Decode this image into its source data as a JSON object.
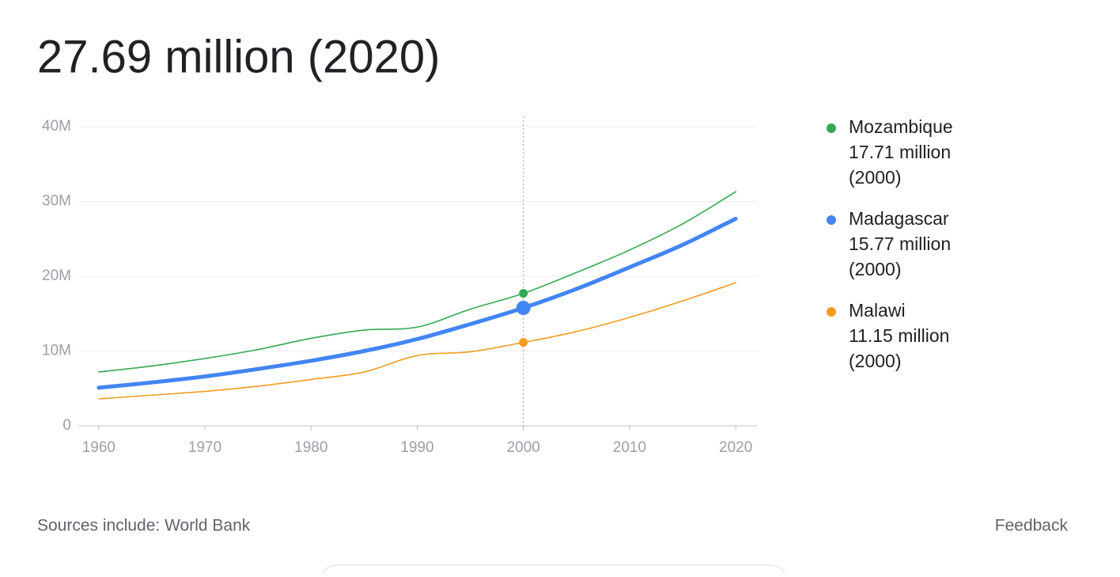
{
  "title": "27.69 million (2020)",
  "chart_data": {
    "type": "line",
    "x": [
      1960,
      1965,
      1970,
      1975,
      1980,
      1985,
      1990,
      1995,
      2000,
      2005,
      2010,
      2015,
      2020
    ],
    "series": [
      {
        "name": "Mozambique",
        "color": "#34a853",
        "values": [
          7200000,
          8000000,
          9000000,
          10200000,
          11700000,
          12800000,
          13200000,
          15600000,
          17710000,
          20500000,
          23500000,
          27000000,
          31300000
        ],
        "highlight_value": 17710000,
        "highlight_label": "17.71 million"
      },
      {
        "name": "Madagascar",
        "color": "#4285f4",
        "values": [
          5100000,
          5800000,
          6600000,
          7600000,
          8700000,
          10000000,
          11600000,
          13600000,
          15770000,
          18300000,
          21200000,
          24200000,
          27690000
        ],
        "highlight_value": 15770000,
        "highlight_label": "15.77 million"
      },
      {
        "name": "Malawi",
        "color": "#f29b22",
        "values": [
          3600000,
          4100000,
          4600000,
          5300000,
          6200000,
          7200000,
          9400000,
          9900000,
          11150000,
          12600000,
          14500000,
          16700000,
          19130000
        ],
        "highlight_value": 11150000,
        "highlight_label": "11.15 million"
      }
    ],
    "highlight": {
      "x": 2000,
      "label": "(2000)"
    },
    "xlim": [
      1958,
      2022
    ],
    "xticks": [
      1960,
      1970,
      1980,
      1990,
      2000,
      2010,
      2020
    ],
    "ylim": [
      0,
      40000000
    ],
    "yticks": [
      0,
      {
        "value": 10000000,
        "label": "10M"
      },
      {
        "value": 20000000,
        "label": "20M"
      },
      {
        "value": 30000000,
        "label": "30M"
      },
      {
        "value": 40000000,
        "label": "40M"
      }
    ],
    "grid": true
  },
  "footer": {
    "source": "Sources include: World Bank",
    "feedback": "Feedback"
  }
}
